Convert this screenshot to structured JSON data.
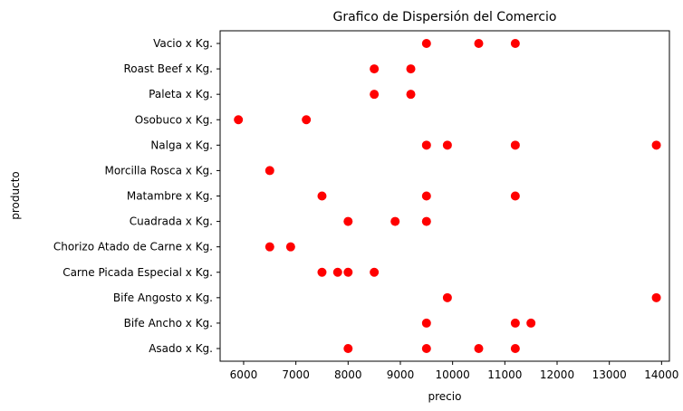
{
  "chart_data": {
    "type": "scatter",
    "title": "Grafico de Dispersión del Comercio",
    "xlabel": "precio",
    "ylabel": "producto",
    "xlim": [
      5550,
      14150
    ],
    "x_ticks": [
      6000,
      7000,
      8000,
      9000,
      10000,
      11000,
      12000,
      13000,
      14000
    ],
    "grid": false,
    "marker_color": "#ff0000",
    "categories": [
      "Asado x Kg.",
      "Bife Ancho x Kg.",
      "Bife Angosto x Kg.",
      "Carne Picada Especial x Kg.",
      "Chorizo Atado de Carne x Kg.",
      "Cuadrada x Kg.",
      "Matambre x Kg.",
      "Morcilla Rosca x Kg.",
      "Nalga x Kg.",
      "Osobuco x Kg.",
      "Paleta x Kg.",
      "Roast Beef x Kg.",
      "Vacio x Kg."
    ],
    "points": [
      {
        "category": "Vacio x Kg.",
        "x": [
          9500,
          10500,
          11200
        ]
      },
      {
        "category": "Roast Beef x Kg.",
        "x": [
          8500,
          9200
        ]
      },
      {
        "category": "Paleta x Kg.",
        "x": [
          8500,
          9200
        ]
      },
      {
        "category": "Osobuco x Kg.",
        "x": [
          5900,
          7200
        ]
      },
      {
        "category": "Nalga x Kg.",
        "x": [
          9500,
          9900,
          11200,
          13900
        ]
      },
      {
        "category": "Morcilla Rosca x Kg.",
        "x": [
          6500
        ]
      },
      {
        "category": "Matambre x Kg.",
        "x": [
          7500,
          9500,
          11200
        ]
      },
      {
        "category": "Cuadrada x Kg.",
        "x": [
          8000,
          8900,
          9500
        ]
      },
      {
        "category": "Chorizo Atado de Carne x Kg.",
        "x": [
          6500,
          6900
        ]
      },
      {
        "category": "Carne Picada Especial x Kg.",
        "x": [
          7500,
          7800,
          8000,
          8500
        ]
      },
      {
        "category": "Bife Angosto x Kg.",
        "x": [
          9900,
          13900
        ]
      },
      {
        "category": "Bife Ancho x Kg.",
        "x": [
          9500,
          11200,
          11500
        ]
      },
      {
        "category": "Asado x Kg.",
        "x": [
          8000,
          9500,
          10500,
          11200
        ]
      }
    ]
  }
}
